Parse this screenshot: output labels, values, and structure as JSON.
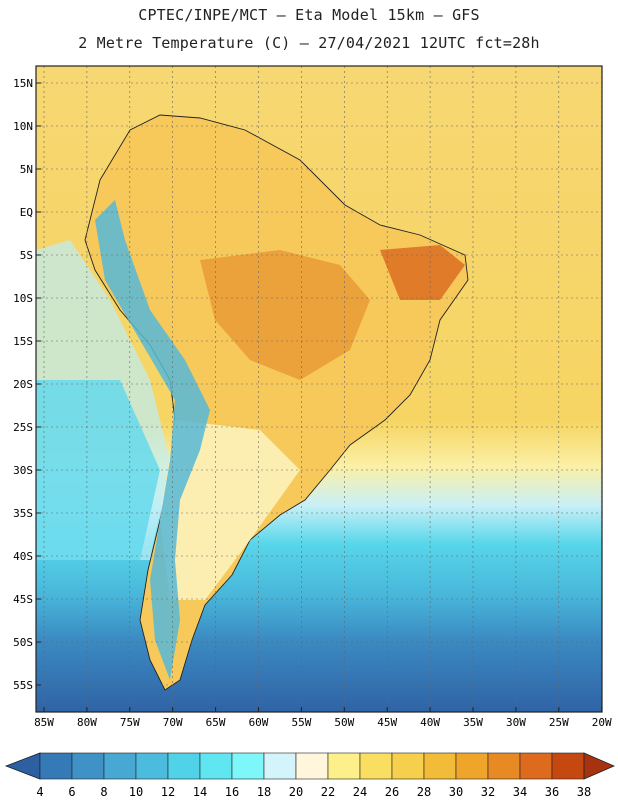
{
  "header": {
    "line1": "CPTEC/INPE/MCT –   Eta Model 15km – GFS",
    "line2": "2 Metre Temperature (C) – 27/04/2021 12UTC fct=28h"
  },
  "map": {
    "region": "South America",
    "lat_labels": [
      "15N",
      "10N",
      "5N",
      "EQ",
      "5S",
      "10S",
      "15S",
      "20S",
      "25S",
      "30S",
      "35S",
      "40S",
      "45S",
      "50S",
      "55S"
    ],
    "lon_labels": [
      "85W",
      "80W",
      "75W",
      "70W",
      "65W",
      "60W",
      "55W",
      "50W",
      "45W",
      "40W",
      "35W",
      "30W",
      "25W",
      "20W"
    ]
  },
  "colorbar": {
    "ticks": [
      "4",
      "6",
      "8",
      "10",
      "12",
      "14",
      "16",
      "18",
      "20",
      "22",
      "24",
      "26",
      "28",
      "30",
      "32",
      "34",
      "36",
      "38"
    ],
    "colors": [
      "#2d5fa3",
      "#3579b6",
      "#3f92c6",
      "#46a8d3",
      "#4cbcde",
      "#50d2e8",
      "#5fe6f0",
      "#7ef7fb",
      "#d3f4fb",
      "#fff6dc",
      "#fdf08a",
      "#f9de62",
      "#f6cf4c",
      "#f2bb38",
      "#efa52a",
      "#e88a24",
      "#dd6a1d",
      "#c64811",
      "#a63210"
    ]
  }
}
